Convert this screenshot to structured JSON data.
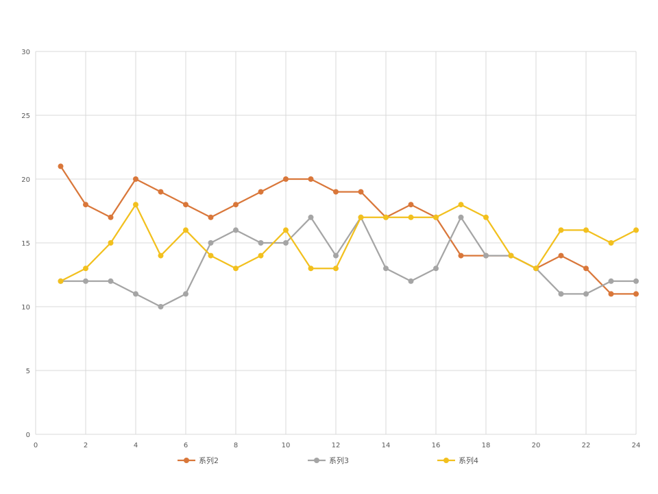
{
  "chart_data": {
    "type": "line",
    "title": "",
    "xlabel": "",
    "ylabel": "",
    "xlim": [
      0,
      24
    ],
    "ylim": [
      0,
      30
    ],
    "x_ticks": [
      0,
      2,
      4,
      6,
      8,
      10,
      12,
      14,
      16,
      18,
      20,
      22,
      24
    ],
    "y_ticks": [
      0,
      5,
      10,
      15,
      20,
      25,
      30
    ],
    "grid": true,
    "legend_position": "bottom",
    "x": [
      1,
      2,
      3,
      4,
      5,
      6,
      7,
      8,
      9,
      10,
      11,
      12,
      13,
      14,
      15,
      16,
      17,
      18,
      19,
      20,
      21,
      22,
      23,
      24
    ],
    "series": [
      {
        "name": "系列2",
        "color": "#d9773a",
        "values": [
          21,
          18,
          17,
          20,
          19,
          18,
          17,
          18,
          19,
          20,
          20,
          19,
          19,
          17,
          18,
          17,
          14,
          14,
          14,
          13,
          14,
          13,
          11,
          11
        ]
      },
      {
        "name": "系列3",
        "color": "#a5a5a5",
        "values": [
          12,
          12,
          12,
          11,
          10,
          11,
          15,
          16,
          15,
          15,
          17,
          14,
          17,
          13,
          12,
          13,
          17,
          14,
          14,
          13,
          11,
          11,
          12,
          12
        ]
      },
      {
        "name": "系列4",
        "color": "#f2c01e",
        "values": [
          12,
          13,
          15,
          18,
          14,
          16,
          14,
          13,
          14,
          16,
          13,
          13,
          17,
          17,
          17,
          17,
          18,
          17,
          14,
          13,
          16,
          16,
          15,
          16
        ]
      }
    ]
  }
}
